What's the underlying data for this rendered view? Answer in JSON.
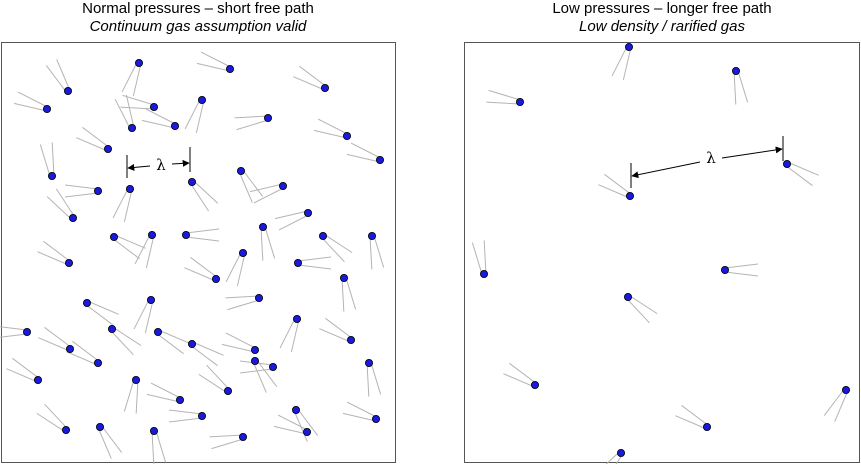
{
  "left_panel": {
    "title": "Normal pressures – short free path",
    "subtitle": "Continuum gas assumption valid",
    "lambda_label": "λ"
  },
  "right_panel": {
    "title": "Low pressures – longer free path",
    "subtitle": "Low density / rarified gas",
    "lambda_label": "λ"
  },
  "colors": {
    "molecule_fill": "#1a1adc",
    "molecule_stroke": "#000000",
    "trail": "#b4b4b4",
    "frame": "#555555"
  }
}
